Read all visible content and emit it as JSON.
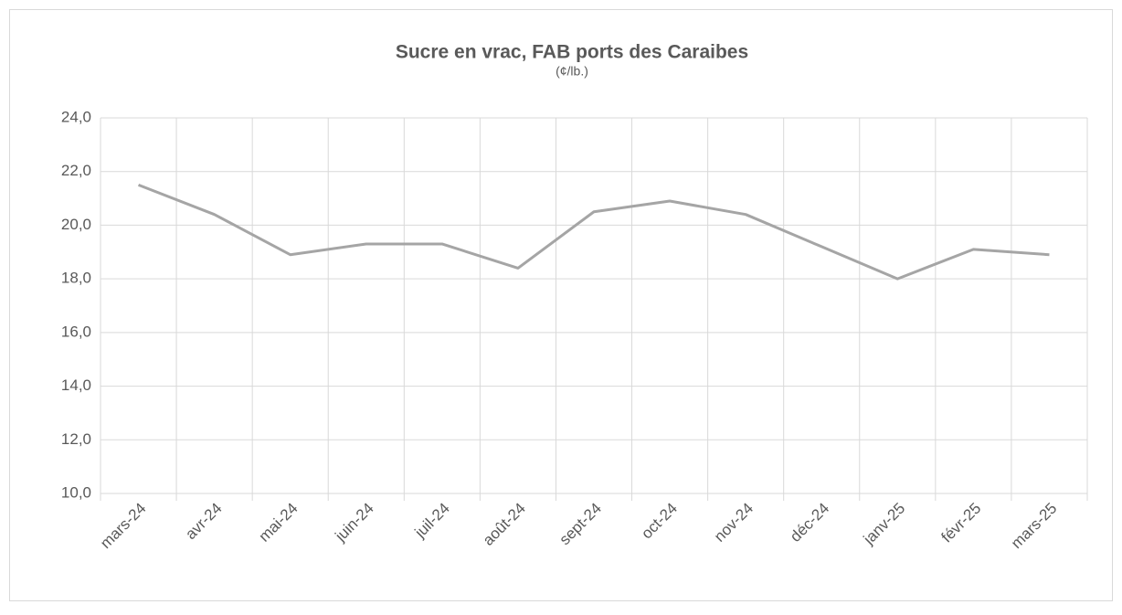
{
  "chart_data": {
    "type": "line",
    "title": "Sucre en vrac,  FAB ports des Caraibes",
    "subtitle": "(¢/lb.)",
    "categories": [
      "mars-24",
      "avr-24",
      "mai-24",
      "juin-24",
      "juil-24",
      "août-24",
      "sept-24",
      "oct-24",
      "nov-24",
      "déc-24",
      "janv-25",
      "févr-25",
      "mars-25"
    ],
    "series": [
      {
        "color": "#a5a5a5",
        "values": [
          21.5,
          20.4,
          18.9,
          19.3,
          19.3,
          18.4,
          20.5,
          20.9,
          20.4,
          19.2,
          18.0,
          19.1,
          18.9
        ]
      }
    ],
    "ylim": [
      10,
      24
    ],
    "yticks": [
      {
        "value": 10,
        "label": "10,0"
      },
      {
        "value": 12,
        "label": "12,0"
      },
      {
        "value": 14,
        "label": "14,0"
      },
      {
        "value": 16,
        "label": "16,0"
      },
      {
        "value": 18,
        "label": "18,0"
      },
      {
        "value": 20,
        "label": "20,0"
      },
      {
        "value": 22,
        "label": "22,0"
      },
      {
        "value": 24,
        "label": "24,0"
      }
    ],
    "grid": true
  }
}
